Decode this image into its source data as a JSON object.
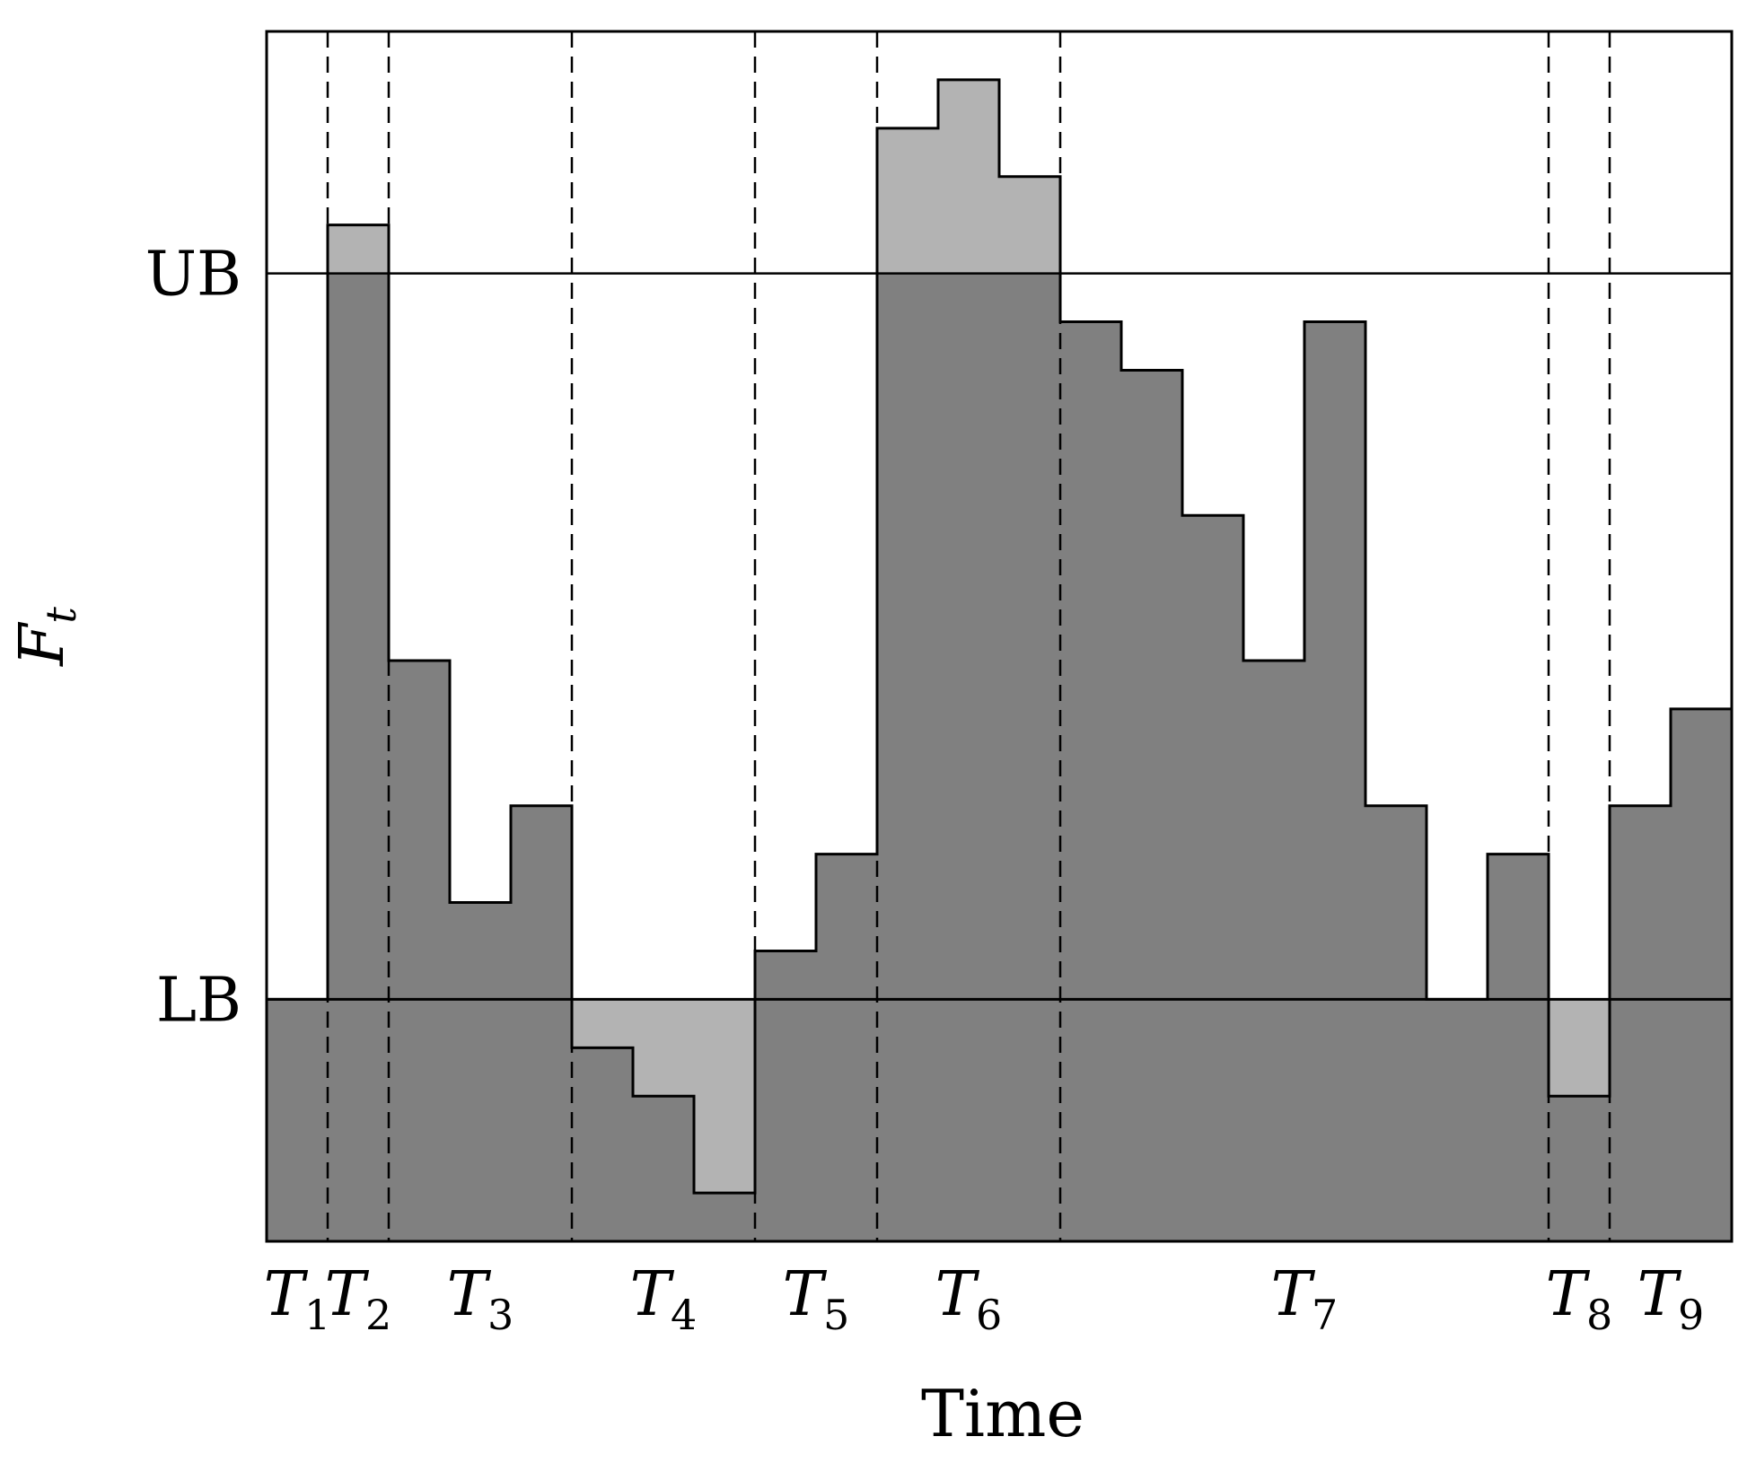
{
  "chart_data": {
    "type": "bar",
    "xlabel": "Time",
    "ylabel": {
      "main": "F",
      "sub": "t"
    },
    "ylim": [
      0,
      25
    ],
    "ub": {
      "label": "UB",
      "value": 20
    },
    "lb": {
      "label": "LB",
      "value": 5
    },
    "x_range": [
      0,
      24
    ],
    "steps": [
      {
        "x0": 0,
        "x1": 1,
        "value": 5
      },
      {
        "x0": 1,
        "x1": 2,
        "value": 21
      },
      {
        "x0": 2,
        "x1": 3,
        "value": 12
      },
      {
        "x0": 3,
        "x1": 4,
        "value": 7
      },
      {
        "x0": 4,
        "x1": 5,
        "value": 9
      },
      {
        "x0": 5,
        "x1": 6,
        "value": 4
      },
      {
        "x0": 6,
        "x1": 7,
        "value": 3
      },
      {
        "x0": 7,
        "x1": 8,
        "value": 1
      },
      {
        "x0": 8,
        "x1": 9,
        "value": 6
      },
      {
        "x0": 9,
        "x1": 10,
        "value": 8
      },
      {
        "x0": 10,
        "x1": 11,
        "value": 23
      },
      {
        "x0": 11,
        "x1": 12,
        "value": 24
      },
      {
        "x0": 12,
        "x1": 13,
        "value": 22
      },
      {
        "x0": 13,
        "x1": 14,
        "value": 19
      },
      {
        "x0": 14,
        "x1": 15,
        "value": 18
      },
      {
        "x0": 15,
        "x1": 16,
        "value": 15
      },
      {
        "x0": 16,
        "x1": 17,
        "value": 12
      },
      {
        "x0": 17,
        "x1": 18,
        "value": 19
      },
      {
        "x0": 18,
        "x1": 19,
        "value": 9
      },
      {
        "x0": 19,
        "x1": 20,
        "value": 5
      },
      {
        "x0": 20,
        "x1": 21,
        "value": 8
      },
      {
        "x0": 21,
        "x1": 22,
        "value": 3
      },
      {
        "x0": 22,
        "x1": 23,
        "value": 9
      },
      {
        "x0": 23,
        "x1": 24,
        "value": 11
      }
    ],
    "period_boundaries": [
      1,
      2,
      5,
      8,
      10,
      13,
      21,
      22
    ],
    "periods": [
      {
        "label": "T",
        "sub": "1",
        "x": 0.5
      },
      {
        "label": "T",
        "sub": "2",
        "x": 1.5
      },
      {
        "label": "T",
        "sub": "3",
        "x": 3.5
      },
      {
        "label": "T",
        "sub": "4",
        "x": 6.5
      },
      {
        "label": "T",
        "sub": "5",
        "x": 9
      },
      {
        "label": "T",
        "sub": "6",
        "x": 11.5
      },
      {
        "label": "T",
        "sub": "7",
        "x": 17
      },
      {
        "label": "T",
        "sub": "8",
        "x": 21.5
      },
      {
        "label": "T",
        "sub": "9",
        "x": 23
      }
    ],
    "colors": {
      "dark": "#808080",
      "light": "#b3b3b3",
      "line": "#000000",
      "background": "#ffffff"
    },
    "grid": false,
    "legend": "none"
  }
}
